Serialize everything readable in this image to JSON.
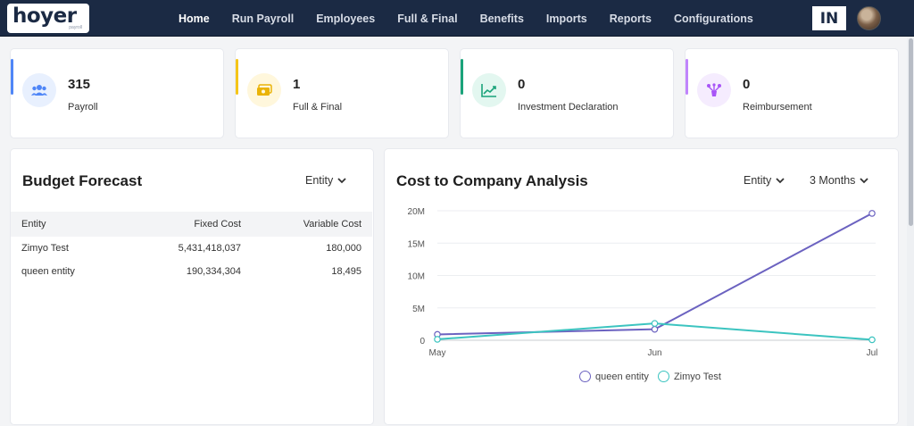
{
  "brand": {
    "logo_text": "hoyer",
    "logo_sub": "payroll"
  },
  "nav": {
    "items": [
      "Home",
      "Run Payroll",
      "Employees",
      "Full & Final",
      "Benefits",
      "Imports",
      "Reports",
      "Configurations"
    ],
    "active": "Home"
  },
  "header": {
    "country_code": "IN"
  },
  "stats": [
    {
      "value": "315",
      "label": "Payroll",
      "icon": "users-icon",
      "accent": "#4f86f7",
      "icon_bg": "#e8f0fe",
      "icon_color": "#4f86f7"
    },
    {
      "value": "1",
      "label": "Full & Final",
      "icon": "money-icon",
      "accent": "#f5c518",
      "icon_bg": "#fff7dc",
      "icon_color": "#eab308"
    },
    {
      "value": "0",
      "label": "Investment Declaration",
      "icon": "trend-up-icon",
      "accent": "#1aa37a",
      "icon_bg": "#e3f7f0",
      "icon_color": "#1aa37a"
    },
    {
      "value": "0",
      "label": "Reimbursement",
      "icon": "reimbursement-icon",
      "accent": "#c084fc",
      "icon_bg": "#f5ecfe",
      "icon_color": "#a855f7"
    }
  ],
  "budget_forecast": {
    "title": "Budget Forecast",
    "filter": "Entity",
    "columns": [
      "Entity",
      "Fixed Cost",
      "Variable Cost"
    ],
    "rows": [
      [
        "Zimyo Test",
        "5,431,418,037",
        "180,000"
      ],
      [
        "queen entity",
        "190,334,304",
        "18,495"
      ]
    ]
  },
  "ctc": {
    "title": "Cost to Company Analysis",
    "filter_entity": "Entity",
    "filter_period": "3 Months"
  },
  "chart_data": {
    "type": "line",
    "x": [
      "May",
      "Jun",
      "Jul"
    ],
    "y_ticks": [
      0,
      5000000,
      10000000,
      15000000,
      20000000
    ],
    "y_tick_labels": [
      "0",
      "5M",
      "10M",
      "15M",
      "20M"
    ],
    "ylim": [
      0,
      20000000
    ],
    "series": [
      {
        "name": "queen entity",
        "color": "#6b62c0",
        "values": [
          900000,
          1700000,
          19600000
        ]
      },
      {
        "name": "Zimyo Test",
        "color": "#3cc4c0",
        "values": [
          150000,
          2600000,
          80000
        ]
      }
    ],
    "legend": "bottom-center",
    "grid": true
  }
}
